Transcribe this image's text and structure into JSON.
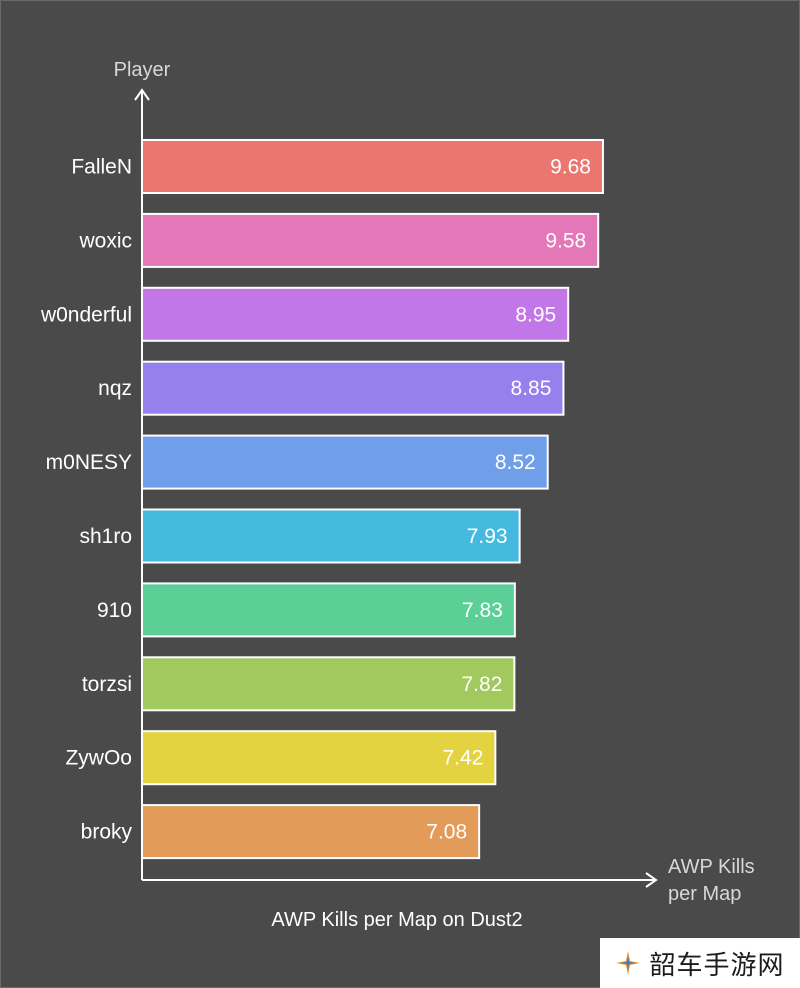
{
  "chart_data": {
    "type": "bar",
    "orientation": "horizontal",
    "title": "AWP Kills per Map on Dust2",
    "ylabel": "Player",
    "xlabel_lines": [
      "AWP Kills",
      "per Map"
    ],
    "categories": [
      "FalleN",
      "woxic",
      "w0nderful",
      "nqz",
      "m0NESY",
      "sh1ro",
      "910",
      "torzsi",
      "ZywOo",
      "broky"
    ],
    "values": [
      9.68,
      9.58,
      8.95,
      8.85,
      8.52,
      7.93,
      7.83,
      7.82,
      7.42,
      7.08
    ],
    "value_labels": [
      "9.68",
      "9.58",
      "8.95",
      "8.85",
      "8.52",
      "7.93",
      "7.83",
      "7.82",
      "7.42",
      "7.08"
    ],
    "colors": [
      "#eb7670",
      "#e377b8",
      "#c277e8",
      "#9580ee",
      "#6f9fe9",
      "#45bade",
      "#5ccf97",
      "#a2c95d",
      "#e3d341",
      "#e29b58"
    ],
    "xlim": [
      0,
      10.5
    ],
    "grid": false,
    "legend": "none"
  },
  "watermark": {
    "text": "韶车手游网",
    "icon": "sparkle-logo-icon"
  }
}
